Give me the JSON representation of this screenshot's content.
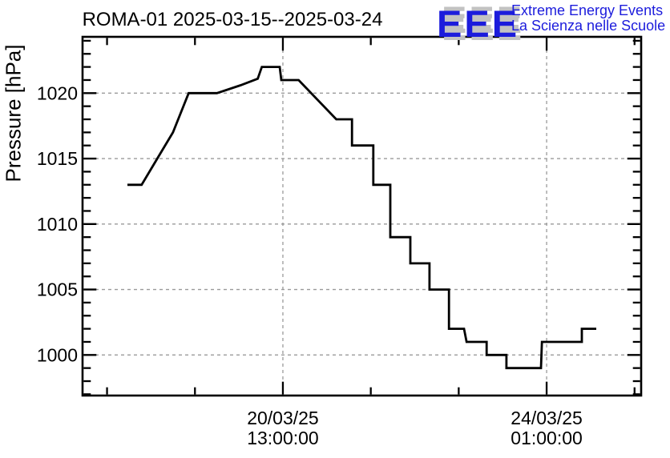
{
  "header": {
    "title": "ROMA-01 2025-03-15--2025-03-24"
  },
  "logo": {
    "acronym": "EEE",
    "tagline_line1": "Extreme Energy Events",
    "tagline_line2": "La Scienza nelle Scuole",
    "blue": "#1c1cdc",
    "shadow_gray": "#c2c2c2"
  },
  "chart_data": {
    "type": "line",
    "title": "ROMA-01 2025-03-15--2025-03-24",
    "ylabel": "Pressure [hPa]",
    "xlabel": "",
    "x_unit": "hours relative to 2025-03-20 13:00:00",
    "x_range": [
      -63.8,
      114.1
    ],
    "y_range": [
      996.9,
      1024.3
    ],
    "grid": true,
    "legend": "none",
    "line_color": "#000000",
    "grid_color": "#9a9a9a",
    "axis_color": "#000000",
    "x_major_ticks": [
      {
        "value": 0,
        "label_line1": "20/03/25",
        "label_line2": "13:00:00"
      },
      {
        "value": 84,
        "label_line1": "24/03/25",
        "label_line2": "01:00:00"
      }
    ],
    "x_minor_ticks": [
      -56,
      -28,
      28,
      56,
      112
    ],
    "y_major_ticks": [
      1000,
      1005,
      1010,
      1015,
      1020
    ],
    "y_minor": {
      "from": 997,
      "to": 1024,
      "step": 1
    },
    "points_hours_hpa": [
      [
        -49.5,
        1013
      ],
      [
        -45,
        1013
      ],
      [
        -40,
        1015
      ],
      [
        -35,
        1017
      ],
      [
        -30,
        1020
      ],
      [
        -21,
        1020
      ],
      [
        -13.5,
        1020.6
      ],
      [
        -8,
        1021.1
      ],
      [
        -6.7,
        1022
      ],
      [
        -1,
        1022
      ],
      [
        -0.5,
        1021
      ],
      [
        5,
        1021
      ],
      [
        17,
        1018
      ],
      [
        22,
        1018
      ],
      [
        22,
        1016
      ],
      [
        28.8,
        1016
      ],
      [
        28.8,
        1013
      ],
      [
        34.2,
        1013
      ],
      [
        34.2,
        1009
      ],
      [
        40.6,
        1009
      ],
      [
        40.6,
        1007
      ],
      [
        46.7,
        1007
      ],
      [
        46.7,
        1005
      ],
      [
        52.9,
        1005
      ],
      [
        52.9,
        1002
      ],
      [
        57.7,
        1002
      ],
      [
        58.5,
        1001
      ],
      [
        64.9,
        1001
      ],
      [
        64.9,
        1000
      ],
      [
        71.2,
        1000
      ],
      [
        71.2,
        999
      ],
      [
        82.2,
        999
      ],
      [
        82.5,
        1001
      ],
      [
        95.2,
        1001
      ],
      [
        95.2,
        1002
      ],
      [
        99.8,
        1002
      ]
    ]
  }
}
